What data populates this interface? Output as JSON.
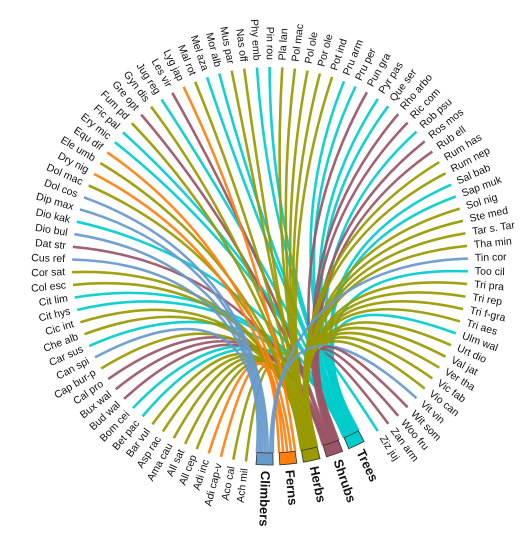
{
  "groups": [
    {
      "id": "climbers",
      "label": "Climbers",
      "color": "#6699cc"
    },
    {
      "id": "ferns",
      "label": "Ferns",
      "color": "#ff7f0e"
    },
    {
      "id": "herbs",
      "label": "Herbs",
      "color": "#999900"
    },
    {
      "id": "shrubs",
      "label": "Shrubs",
      "color": "#995566"
    },
    {
      "id": "trees",
      "label": "Trees",
      "color": "#00cccc"
    }
  ],
  "species": [
    {
      "label": "Ach mil",
      "group": "herbs"
    },
    {
      "label": "Aco cal",
      "group": "herbs"
    },
    {
      "label": "Adi cap-v",
      "group": "ferns"
    },
    {
      "label": "Adi inc",
      "group": "ferns"
    },
    {
      "label": "All cep",
      "group": "herbs"
    },
    {
      "label": "All sat",
      "group": "herbs"
    },
    {
      "label": "Ama cau",
      "group": "herbs"
    },
    {
      "label": "Asp rac",
      "group": "herbs"
    },
    {
      "label": "Bar vul",
      "group": "herbs"
    },
    {
      "label": "Bet pac",
      "group": "trees"
    },
    {
      "label": "Bom cei",
      "group": "trees"
    },
    {
      "label": "Bud wal",
      "group": "shrubs"
    },
    {
      "label": "Bux wal",
      "group": "shrubs"
    },
    {
      "label": "Cal pro",
      "group": "shrubs"
    },
    {
      "label": "Cap bur-p",
      "group": "herbs"
    },
    {
      "label": "Can spi",
      "group": "climbers"
    },
    {
      "label": "Car sus",
      "group": "trees"
    },
    {
      "label": "Che alb",
      "group": "herbs"
    },
    {
      "label": "Cic int",
      "group": "herbs"
    },
    {
      "label": "Cit hys",
      "group": "trees"
    },
    {
      "label": "Cit lim",
      "group": "trees"
    },
    {
      "label": "Col esc",
      "group": "herbs"
    },
    {
      "label": "Cor sat",
      "group": "herbs"
    },
    {
      "label": "Cus ref",
      "group": "climbers"
    },
    {
      "label": "Dat str",
      "group": "shrubs"
    },
    {
      "label": "Dio bul",
      "group": "climbers"
    },
    {
      "label": "Dio kak",
      "group": "trees"
    },
    {
      "label": "Dip max",
      "group": "climbers"
    },
    {
      "label": "Dol cos",
      "group": "climbers"
    },
    {
      "label": "Dol mac",
      "group": "herbs"
    },
    {
      "label": "Dry nig",
      "group": "ferns"
    },
    {
      "label": "Ele umb",
      "group": "herbs"
    },
    {
      "label": "Equ dif",
      "group": "ferns"
    },
    {
      "label": "Ery mic",
      "group": "trees"
    },
    {
      "label": "Fic pal",
      "group": "trees"
    },
    {
      "label": "Fum pd",
      "group": "herbs"
    },
    {
      "label": "Gre opt",
      "group": "shrubs"
    },
    {
      "label": "Gyn dis",
      "group": "herbs"
    },
    {
      "label": "Jug reg",
      "group": "trees"
    },
    {
      "label": "Les vir",
      "group": "shrubs"
    },
    {
      "label": "Lyg jap",
      "group": "ferns"
    },
    {
      "label": "Mal rot",
      "group": "herbs"
    },
    {
      "label": "Mel aza",
      "group": "trees"
    },
    {
      "label": "Mor alb",
      "group": "trees"
    },
    {
      "label": "Mus par",
      "group": "herbs"
    },
    {
      "label": "Nas off",
      "group": "herbs"
    },
    {
      "label": "Phy emb",
      "group": "trees"
    },
    {
      "label": "Pin rou",
      "group": "trees"
    },
    {
      "label": "Pla lan",
      "group": "herbs"
    },
    {
      "label": "Pol mac",
      "group": "herbs"
    },
    {
      "label": "Pol ole",
      "group": "herbs"
    },
    {
      "label": "Por ole",
      "group": "herbs"
    },
    {
      "label": "Pot ind",
      "group": "herbs"
    },
    {
      "label": "Pru arm",
      "group": "trees"
    },
    {
      "label": "Pru per",
      "group": "trees"
    },
    {
      "label": "Pun gra",
      "group": "shrubs"
    },
    {
      "label": "Pyr pas",
      "group": "trees"
    },
    {
      "label": "Que ser",
      "group": "trees"
    },
    {
      "label": "Rho arbo",
      "group": "shrubs"
    },
    {
      "label": "Ric com",
      "group": "shrubs"
    },
    {
      "label": "Rob psu",
      "group": "trees"
    },
    {
      "label": "Ros mos",
      "group": "shrubs"
    },
    {
      "label": "Rub ell",
      "group": "shrubs"
    },
    {
      "label": "Rum has",
      "group": "herbs"
    },
    {
      "label": "Rum nep",
      "group": "herbs"
    },
    {
      "label": "Sal bab",
      "group": "trees"
    },
    {
      "label": "Sap muk",
      "group": "trees"
    },
    {
      "label": "Sol nig",
      "group": "herbs"
    },
    {
      "label": "Ste med",
      "group": "herbs"
    },
    {
      "label": "Tar s. Tar",
      "group": "herbs"
    },
    {
      "label": "Tha min",
      "group": "herbs"
    },
    {
      "label": "Tin cor",
      "group": "climbers"
    },
    {
      "label": "Too cil",
      "group": "trees"
    },
    {
      "label": "Tri pra",
      "group": "herbs"
    },
    {
      "label": "Tri rep",
      "group": "herbs"
    },
    {
      "label": "Tri f-gra",
      "group": "herbs"
    },
    {
      "label": "Tri aes",
      "group": "herbs"
    },
    {
      "label": "Ulm wal",
      "group": "trees"
    },
    {
      "label": "Urt dio",
      "group": "herbs"
    },
    {
      "label": "Val jat",
      "group": "herbs"
    },
    {
      "label": "Ver tha",
      "group": "herbs"
    },
    {
      "label": "Vic fab",
      "group": "herbs"
    },
    {
      "label": "Vio can",
      "group": "herbs"
    },
    {
      "label": "Vit vin",
      "group": "climbers"
    },
    {
      "label": "Wit som",
      "group": "shrubs"
    },
    {
      "label": "Woo fru",
      "group": "shrubs"
    },
    {
      "label": "Zan arm",
      "group": "shrubs"
    },
    {
      "label": "Ziz juj",
      "group": "trees"
    }
  ]
}
